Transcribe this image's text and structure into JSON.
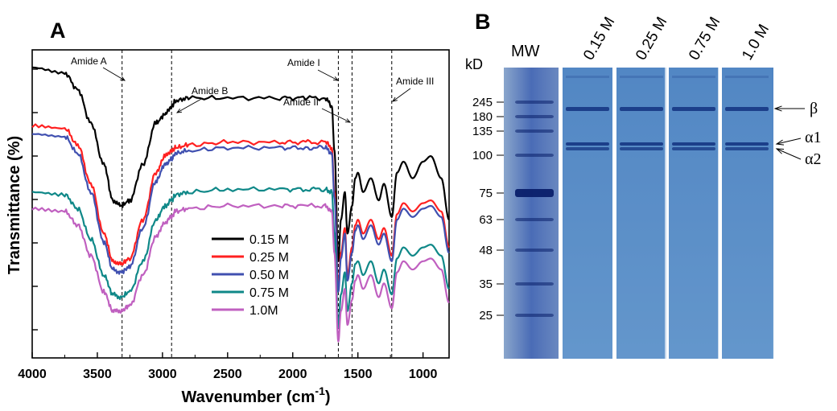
{
  "panel_a": {
    "letter": "A",
    "xlabel_main": "Wavenumber (cm",
    "xlabel_sup": "-1",
    "xlabel_close": ")",
    "ylabel": "Transmittance (%)"
  },
  "panel_b": {
    "letter": "B",
    "mw_label": "MW",
    "kd_label": "kD",
    "lane_labels": [
      "0.15 M",
      "0.25 M",
      "0.75 M",
      "1.0 M"
    ],
    "marker_labels": [
      "245",
      "180",
      "135",
      "100",
      "75",
      "63",
      "48",
      "35",
      "25"
    ],
    "marker_kd": [
      245,
      180,
      135,
      100,
      75,
      63,
      48,
      35,
      25
    ],
    "band_labels": [
      "β",
      "α1",
      "α2"
    ]
  },
  "chart_data": {
    "type": "line",
    "xlabel": "Wavenumber (cm-1)",
    "ylabel": "Transmittance (%)",
    "xlim": [
      4000,
      800
    ],
    "x_reversed": true,
    "x_ticks": [
      4000,
      3500,
      3000,
      2500,
      2000,
      1500,
      1000
    ],
    "x_tick_labels": [
      "4000",
      "3500",
      "3000",
      "2500",
      "2000",
      "1500",
      "1000"
    ],
    "y_tick_count": 7,
    "y_tick_labels_shown": false,
    "grid": false,
    "legend_placement": "lower-center",
    "reference_lines": [
      {
        "x": 3310,
        "label": "Amide A"
      },
      {
        "x": 2930,
        "label": "Amide B"
      },
      {
        "x": 1650,
        "label": "Amide I"
      },
      {
        "x": 1545,
        "label": "Amide II"
      },
      {
        "x": 1240,
        "label": "Amide III"
      }
    ],
    "x": [
      4000,
      3750,
      3650,
      3550,
      3450,
      3380,
      3320,
      3250,
      3150,
      3050,
      2980,
      2930,
      2900,
      2800,
      2500,
      2100,
      1900,
      1750,
      1700,
      1680,
      1650,
      1630,
      1600,
      1580,
      1545,
      1520,
      1500,
      1460,
      1400,
      1340,
      1300,
      1240,
      1200,
      1150,
      1080,
      1000,
      940,
      860,
      800
    ],
    "series": [
      {
        "name": "0.15 M",
        "color": "#000000",
        "values": [
          100,
          98,
          92,
          80,
          65,
          52,
          50,
          52,
          65,
          80,
          83,
          86,
          88,
          89,
          89,
          89,
          89,
          89,
          86,
          70,
          30,
          45,
          55,
          40,
          50,
          60,
          62,
          55,
          60,
          52,
          58,
          46,
          62,
          66,
          60,
          66,
          68,
          60,
          45
        ]
      },
      {
        "name": "0.25 M",
        "color": "#ff2020",
        "values": [
          79,
          78,
          72,
          58,
          40,
          30,
          29,
          31,
          45,
          62,
          68,
          70,
          71,
          72,
          73,
          73,
          73,
          73,
          71,
          55,
          20,
          33,
          42,
          25,
          35,
          43,
          45,
          40,
          45,
          38,
          42,
          32,
          47,
          51,
          48,
          51,
          52,
          48,
          35
        ]
      },
      {
        "name": "0.50 M",
        "color": "#4050b0",
        "values": [
          76,
          75,
          69,
          55,
          37,
          27,
          26,
          28,
          42,
          59,
          65,
          67,
          69,
          70,
          71,
          71,
          71,
          71,
          69,
          53,
          19,
          31,
          40,
          23,
          33,
          41,
          43,
          38,
          43,
          36,
          40,
          30,
          45,
          49,
          46,
          49,
          50,
          46,
          33
        ]
      },
      {
        "name": "0.75 M",
        "color": "#0f8888",
        "values": [
          55,
          54,
          49,
          38,
          25,
          18,
          17,
          19,
          30,
          45,
          50,
          52,
          54,
          55,
          56,
          56,
          56,
          56,
          55,
          40,
          6,
          18,
          26,
          12,
          22,
          29,
          30,
          25,
          30,
          22,
          27,
          18,
          31,
          35,
          32,
          35,
          36,
          32,
          20
        ]
      },
      {
        "name": "1.0M",
        "color": "#c060c0",
        "values": [
          49,
          48,
          43,
          32,
          19,
          12,
          12,
          14,
          25,
          39,
          44,
          46,
          48,
          49,
          50,
          50,
          50,
          50,
          48,
          33,
          1,
          12,
          20,
          7,
          16,
          23,
          25,
          20,
          25,
          17,
          22,
          13,
          26,
          30,
          27,
          30,
          31,
          27,
          15
        ]
      }
    ]
  },
  "colors": {
    "gel_background": "#5a8cc6",
    "gel_band": "#1c3f8a",
    "gel_marker_lane": "#3e62ae",
    "gel_marker_band": "#0a1f6a"
  }
}
